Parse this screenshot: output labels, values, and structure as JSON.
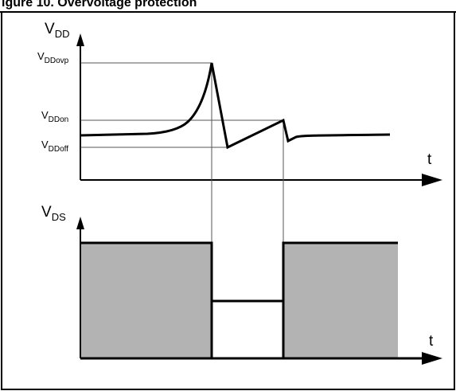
{
  "caption": "igure 10. Overvoltage protection",
  "top_chart": {
    "y_axis": {
      "base": "V",
      "sub": "DD"
    },
    "x_axis": "t",
    "levels": [
      {
        "base": "V",
        "sub": "DDovp"
      },
      {
        "base": "V",
        "sub": "DDon"
      },
      {
        "base": "V",
        "sub": "DDoff"
      }
    ]
  },
  "bottom_chart": {
    "y_axis": {
      "base": "V",
      "sub": "DS"
    },
    "x_axis": "t"
  },
  "colors": {
    "stroke": "#000000",
    "fill": "#b3b3b3",
    "guide": "#555555"
  }
}
